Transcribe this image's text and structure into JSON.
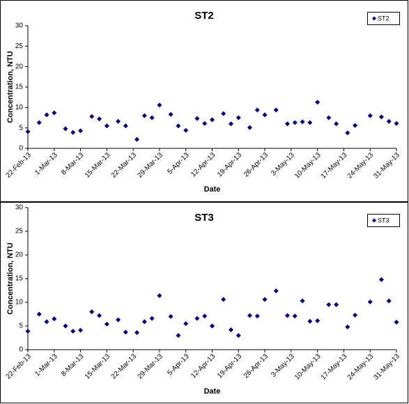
{
  "chart_data": [
    {
      "type": "scatter",
      "title": "ST2",
      "xlabel": "Date",
      "ylabel": "Concentration, NTU",
      "legend": "upper right",
      "x": [
        "2013-02-22",
        "2013-02-25",
        "2013-02-27",
        "2013-03-01",
        "2013-03-04",
        "2013-03-06",
        "2013-03-08",
        "2013-03-11",
        "2013-03-13",
        "2013-03-15",
        "2013-03-18",
        "2013-03-20",
        "2013-03-23",
        "2013-03-25",
        "2013-03-27",
        "2013-03-29",
        "2013-04-01",
        "2013-04-03",
        "2013-04-05",
        "2013-04-08",
        "2013-04-10",
        "2013-04-12",
        "2013-04-15",
        "2013-04-17",
        "2013-04-19",
        "2013-04-22",
        "2013-04-24",
        "2013-04-26",
        "2013-04-29",
        "2013-05-02",
        "2013-05-04",
        "2013-05-06",
        "2013-05-08",
        "2013-05-10",
        "2013-05-13",
        "2013-05-15",
        "2013-05-18",
        "2013-05-20",
        "2013-05-24",
        "2013-05-27",
        "2013-05-29",
        "2013-05-31"
      ],
      "series": [
        {
          "name": "ST2",
          "color": "#000080",
          "values": [
            4.1,
            6.3,
            8.2,
            8.7,
            4.8,
            3.9,
            4.3,
            7.8,
            7.2,
            5.5,
            6.6,
            5.5,
            2.2,
            8.0,
            7.5,
            10.6,
            8.3,
            5.5,
            4.4,
            7.3,
            6.1,
            7.0,
            8.5,
            6.0,
            7.5,
            5.1,
            9.4,
            8.2,
            9.4,
            6.0,
            6.3,
            6.5,
            6.3,
            11.3,
            7.5,
            6.0,
            3.8,
            5.6,
            8.0,
            7.7,
            6.6,
            6.1
          ]
        }
      ],
      "xlim": [
        "2013-02-22",
        "2013-05-31"
      ],
      "ylim": [
        0,
        30
      ],
      "yticks": [
        0,
        5,
        10,
        15,
        20,
        25,
        30
      ],
      "xticks": [
        {
          "value": "2013-02-22",
          "label": "22-Feb-13"
        },
        {
          "value": "2013-03-01",
          "label": "1-Mar-13"
        },
        {
          "value": "2013-03-08",
          "label": "8-Mar-13"
        },
        {
          "value": "2013-03-15",
          "label": "15-Mar-13"
        },
        {
          "value": "2013-03-22",
          "label": "22-Mar-13"
        },
        {
          "value": "2013-03-29",
          "label": "29-Mar-13"
        },
        {
          "value": "2013-04-05",
          "label": "5-Apr-13"
        },
        {
          "value": "2013-04-12",
          "label": "12-Apr-13"
        },
        {
          "value": "2013-04-19",
          "label": "19-Apr-13"
        },
        {
          "value": "2013-04-26",
          "label": "26-Apr-13"
        },
        {
          "value": "2013-05-03",
          "label": "3-May-13"
        },
        {
          "value": "2013-05-10",
          "label": "10-May-13"
        },
        {
          "value": "2013-05-17",
          "label": "17-May-13"
        },
        {
          "value": "2013-05-24",
          "label": "24-May-13"
        },
        {
          "value": "2013-05-31",
          "label": "31-May-13"
        }
      ]
    },
    {
      "type": "scatter",
      "title": "ST3",
      "xlabel": "Date",
      "ylabel": "Concentration, NTU",
      "legend": "upper right",
      "x": [
        "2013-02-22",
        "2013-02-25",
        "2013-02-27",
        "2013-03-01",
        "2013-03-04",
        "2013-03-06",
        "2013-03-08",
        "2013-03-11",
        "2013-03-13",
        "2013-03-15",
        "2013-03-18",
        "2013-03-20",
        "2013-03-23",
        "2013-03-25",
        "2013-03-27",
        "2013-03-29",
        "2013-04-01",
        "2013-04-03",
        "2013-04-05",
        "2013-04-08",
        "2013-04-10",
        "2013-04-12",
        "2013-04-15",
        "2013-04-17",
        "2013-04-19",
        "2013-04-22",
        "2013-04-24",
        "2013-04-26",
        "2013-04-29",
        "2013-05-02",
        "2013-05-04",
        "2013-05-06",
        "2013-05-08",
        "2013-05-10",
        "2013-05-13",
        "2013-05-15",
        "2013-05-18",
        "2013-05-20",
        "2013-05-24",
        "2013-05-27",
        "2013-05-29",
        "2013-05-31"
      ],
      "series": [
        {
          "name": "ST3",
          "color": "#000080",
          "values": [
            3.9,
            7.5,
            5.9,
            6.5,
            5.0,
            3.9,
            4.1,
            8.0,
            7.2,
            5.4,
            6.3,
            3.7,
            3.6,
            5.9,
            6.6,
            11.4,
            7.0,
            3.0,
            5.5,
            6.6,
            7.1,
            5.0,
            10.6,
            4.2,
            3.0,
            7.2,
            7.1,
            10.6,
            12.4,
            7.2,
            7.1,
            10.3,
            6.0,
            6.1,
            9.5,
            9.5,
            4.8,
            7.3,
            10.1,
            14.8,
            10.3,
            5.8
          ]
        }
      ],
      "xlim": [
        "2013-02-22",
        "2013-05-31"
      ],
      "ylim": [
        0,
        30
      ],
      "yticks": [
        0,
        5,
        10,
        15,
        20,
        25,
        30
      ],
      "xticks": [
        {
          "value": "2013-02-22",
          "label": "22-Feb-13"
        },
        {
          "value": "2013-03-01",
          "label": "1-Mar-13"
        },
        {
          "value": "2013-03-08",
          "label": "8-Mar-13"
        },
        {
          "value": "2013-03-15",
          "label": "15-Mar-13"
        },
        {
          "value": "2013-03-22",
          "label": "22-Mar-13"
        },
        {
          "value": "2013-03-29",
          "label": "29-Mar-13"
        },
        {
          "value": "2013-04-05",
          "label": "5-Apr-13"
        },
        {
          "value": "2013-04-12",
          "label": "12-Apr-13"
        },
        {
          "value": "2013-04-19",
          "label": "19-Apr-13"
        },
        {
          "value": "2013-04-26",
          "label": "26-Apr-13"
        },
        {
          "value": "2013-05-03",
          "label": "3-May-13"
        },
        {
          "value": "2013-05-10",
          "label": "10-May-13"
        },
        {
          "value": "2013-05-17",
          "label": "17-May-13"
        },
        {
          "value": "2013-05-24",
          "label": "24-May-13"
        },
        {
          "value": "2013-05-31",
          "label": "31-May-13"
        }
      ]
    }
  ]
}
